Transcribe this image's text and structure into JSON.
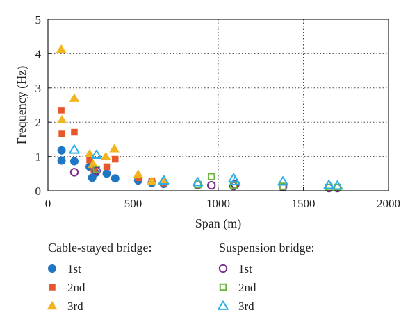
{
  "chart_data": {
    "type": "scatter",
    "xlabel": "Span (m)",
    "ylabel": "Frequency (Hz)",
    "xlim": [
      0,
      2000
    ],
    "ylim": [
      0,
      5
    ],
    "xticks": [
      "0",
      "500",
      "1000",
      "1500",
      "2000"
    ],
    "yticks": [
      "0",
      "1",
      "2",
      "3",
      "4",
      "5"
    ],
    "grid": "dotted",
    "legend": {
      "groups": [
        {
          "title": "Cable-stayed bridge:",
          "labels": [
            "1st",
            "2nd",
            "3rd"
          ]
        },
        {
          "title": "Suspension bridge:",
          "labels": [
            "1st",
            "2nd",
            "3rd"
          ]
        }
      ]
    },
    "series": [
      {
        "group": "Cable-stayed bridge",
        "mode": "1st",
        "marker": "circle-filled",
        "color": "#1f77c4",
        "points": [
          [
            80,
            1.18
          ],
          [
            80,
            0.88
          ],
          [
            155,
            0.86
          ],
          [
            245,
            0.7
          ],
          [
            260,
            0.38
          ],
          [
            280,
            0.52
          ],
          [
            345,
            0.5
          ],
          [
            395,
            0.36
          ],
          [
            530,
            0.3
          ],
          [
            610,
            0.23
          ],
          [
            680,
            0.2
          ]
        ]
      },
      {
        "group": "Cable-stayed bridge",
        "mode": "2nd",
        "marker": "square-filled",
        "color": "#e8572a",
        "points": [
          [
            78,
            2.35
          ],
          [
            82,
            1.66
          ],
          [
            155,
            1.71
          ],
          [
            245,
            0.9
          ],
          [
            270,
            0.6
          ],
          [
            345,
            0.7
          ],
          [
            395,
            0.92
          ],
          [
            530,
            0.38
          ],
          [
            610,
            0.28
          ],
          [
            680,
            0.23
          ]
        ]
      },
      {
        "group": "Cable-stayed bridge",
        "mode": "3rd",
        "marker": "triangle-filled",
        "color": "#f2b51f",
        "points": [
          [
            78,
            4.13
          ],
          [
            82,
            2.07
          ],
          [
            155,
            2.7
          ],
          [
            245,
            1.08
          ],
          [
            265,
            0.78
          ],
          [
            340,
            1.0
          ],
          [
            390,
            1.23
          ],
          [
            530,
            0.48
          ],
          [
            610,
            0.28
          ],
          [
            680,
            0.28
          ]
        ]
      },
      {
        "group": "Suspension bridge",
        "mode": "1st",
        "marker": "circle-open",
        "color": "#7a2a8c",
        "points": [
          [
            155,
            0.54
          ],
          [
            285,
            0.58
          ],
          [
            880,
            0.17
          ],
          [
            960,
            0.16
          ],
          [
            1090,
            0.14
          ],
          [
            1100,
            0.18
          ],
          [
            1380,
            0.11
          ],
          [
            1650,
            0.08
          ],
          [
            1700,
            0.08
          ]
        ]
      },
      {
        "group": "Suspension bridge",
        "mode": "2nd",
        "marker": "square-open",
        "color": "#6ab53a",
        "points": [
          [
            285,
            0.62
          ],
          [
            880,
            0.18
          ],
          [
            960,
            0.41
          ],
          [
            1090,
            0.16
          ],
          [
            1380,
            0.13
          ],
          [
            1650,
            0.1
          ],
          [
            1700,
            0.1
          ]
        ]
      },
      {
        "group": "Suspension bridge",
        "mode": "3rd",
        "marker": "triangle-open",
        "color": "#2eaee8",
        "points": [
          [
            155,
            1.2
          ],
          [
            285,
            1.05
          ],
          [
            680,
            0.3
          ],
          [
            880,
            0.25
          ],
          [
            1090,
            0.36
          ],
          [
            1100,
            0.28
          ],
          [
            1380,
            0.27
          ],
          [
            1650,
            0.17
          ],
          [
            1700,
            0.15
          ]
        ]
      }
    ]
  }
}
